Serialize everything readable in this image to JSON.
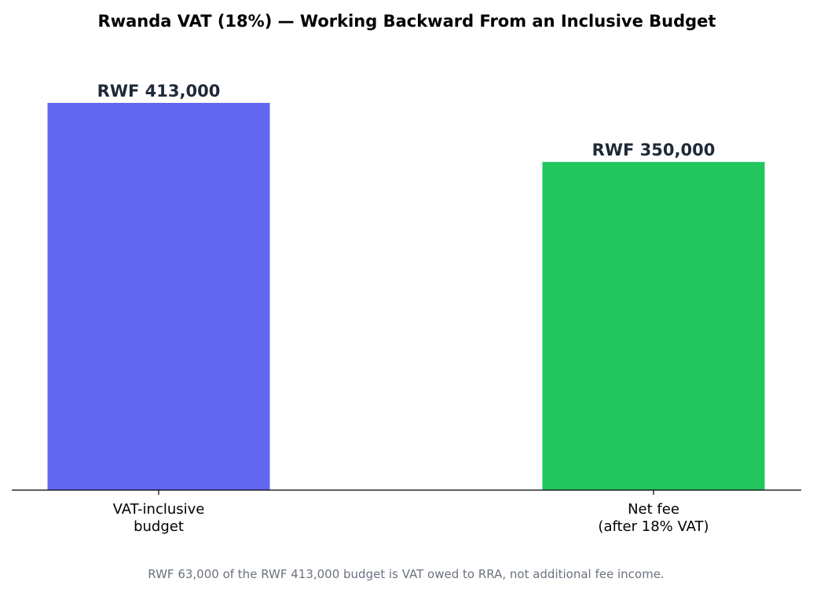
{
  "chart_data": {
    "type": "bar",
    "title": "Rwanda VAT (18%) — Working Backward From an Inclusive Budget",
    "categories": [
      [
        "VAT-inclusive",
        "budget"
      ],
      [
        "Net fee",
        "(after 18% VAT)"
      ]
    ],
    "values": [
      413000,
      350000
    ],
    "value_labels": [
      "RWF 413,000",
      "RWF 350,000"
    ],
    "colors": [
      "#6366f1",
      "#22c55e"
    ],
    "xlabel": "",
    "ylabel": "",
    "ylim": [
      0,
      455000
    ],
    "grid": false,
    "footnote": "RWF 63,000 of the RWF 413,000 budget is VAT owed to RRA, not additional fee income."
  }
}
